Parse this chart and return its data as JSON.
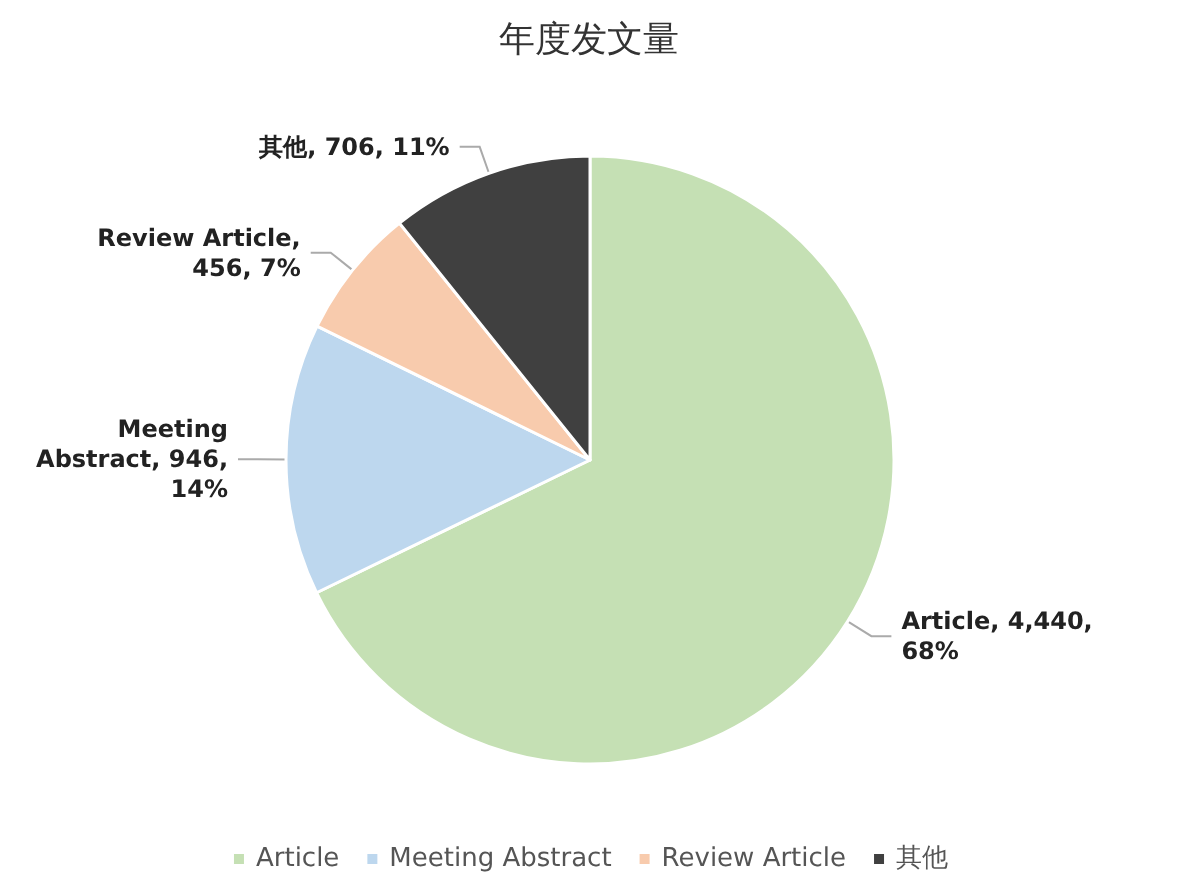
{
  "chart_data": {
    "type": "pie",
    "title": "年度发文量",
    "categories": [
      "Article",
      "Meeting Abstract",
      "Review Article",
      "其他"
    ],
    "values": [
      4440,
      946,
      456,
      706
    ],
    "colors": [
      "#c5e0b4",
      "#bdd7ee",
      "#f8cbad",
      "#404040"
    ],
    "value_labels": [
      "Article, 4,440, 68%",
      "Meeting Abstract, 946, 14%",
      "Review Article, 456, 7%",
      "其他, 706, 11%"
    ],
    "legend": "bottom"
  }
}
